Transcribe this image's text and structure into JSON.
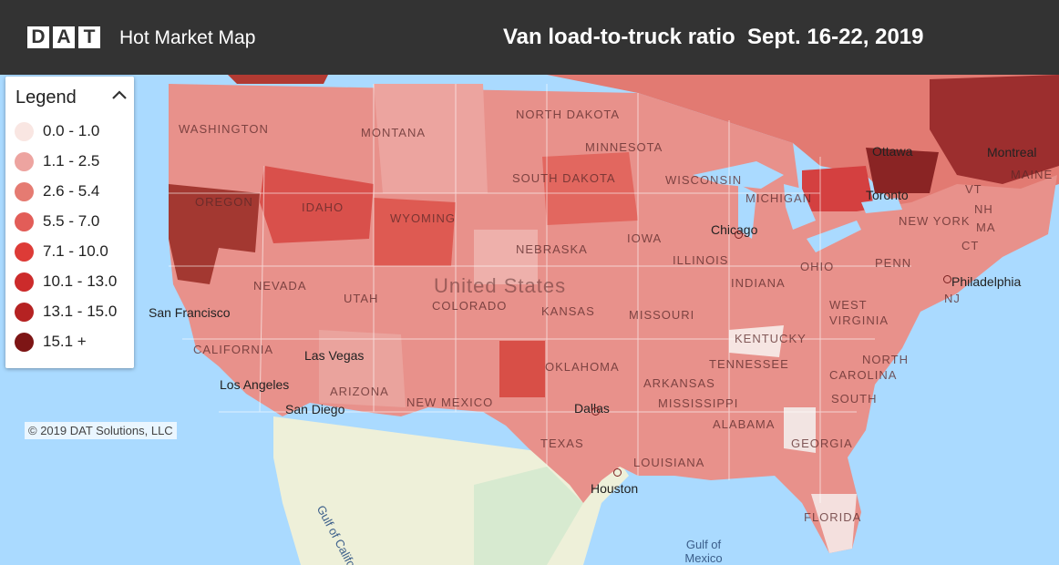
{
  "header": {
    "logo_letters": [
      "D",
      "A",
      "T"
    ],
    "app_title": "Hot Market Map",
    "map_title": "Van load-to-truck ratio  Sept. 16-22, 2019"
  },
  "legend": {
    "title": "Legend",
    "toggle_icon": "chevron-up-icon",
    "items": [
      {
        "label": "0.0 - 1.0",
        "color": "#f9e6e2"
      },
      {
        "label": "1.1 - 2.5",
        "color": "#eda4a0"
      },
      {
        "label": "2.6 - 5.4",
        "color": "#e57b72"
      },
      {
        "label": "5.5 - 7.0",
        "color": "#e25d58"
      },
      {
        "label": "7.1 - 10.0",
        "color": "#dd3b37"
      },
      {
        "label": "10.1 - 13.0",
        "color": "#cc2b2b"
      },
      {
        "label": "13.1 - 15.0",
        "color": "#b52222"
      },
      {
        "label": "15.1 +",
        "color": "#7d1515"
      }
    ]
  },
  "copyright": "© 2019 DAT Solutions, LLC",
  "map": {
    "country_label": "United States",
    "state_labels": [
      "WASHINGTON",
      "MONTANA",
      "NORTH DAKOTA",
      "MINNESOTA",
      "OREGON",
      "IDAHO",
      "WYOMING",
      "SOUTH DAKOTA",
      "WISCONSIN",
      "MICHIGAN",
      "NEVADA",
      "UTAH",
      "COLORADO",
      "NEBRASKA",
      "IOWA",
      "ILLINOIS",
      "INDIANA",
      "OHIO",
      "PENN",
      "NEW YORK",
      "VT",
      "NH",
      "MAINE",
      "MA",
      "CT",
      "NJ",
      "WEST",
      "VIRGINIA",
      "KANSAS",
      "MISSOURI",
      "KENTUCKY",
      "TENNESSEE",
      "NORTH",
      "CAROLINA",
      "SOUTH",
      "CALIFORNIA",
      "ARIZONA",
      "NEW MEXICO",
      "OKLAHOMA",
      "ARKANSAS",
      "MISSISSIPPI",
      "ALABAMA",
      "GEORGIA",
      "TEXAS",
      "LOUISIANA",
      "FLORIDA"
    ],
    "city_labels": [
      "San Francisco",
      "Las Vegas",
      "Los Angeles",
      "San Diego",
      "Chicago",
      "Toronto",
      "Ottawa",
      "Montreal",
      "Philadelphia",
      "Dallas",
      "Houston"
    ],
    "water_labels": [
      "Gulf of California",
      "Gulf of Mexico"
    ]
  }
}
